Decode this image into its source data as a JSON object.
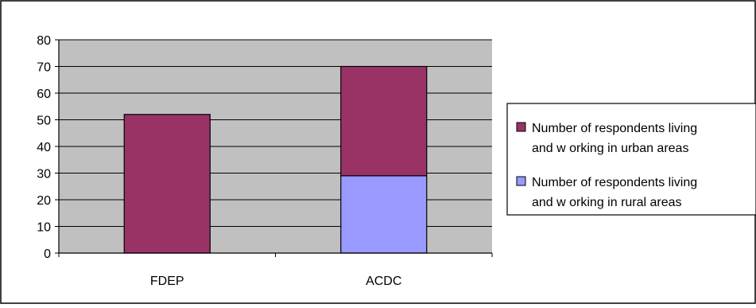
{
  "chart_data": {
    "type": "bar",
    "stacked": true,
    "categories": [
      "FDEP",
      "ACDC"
    ],
    "series": [
      {
        "name": "Number of respondents living and working in rural areas",
        "values": [
          0,
          29
        ],
        "color": "#9999ff"
      },
      {
        "name": "Number of respondents living and working in urban areas",
        "values": [
          52,
          41
        ],
        "color": "#993366"
      }
    ],
    "ylim": [
      0,
      80
    ],
    "yticks": [
      "0",
      "10",
      "20",
      "30",
      "40",
      "50",
      "60",
      "70",
      "80"
    ],
    "grid": true,
    "plot_background": "#c0c0c0",
    "legend": {
      "position": "right",
      "entries": [
        {
          "lines": [
            "Number of respondents living",
            "and w orking in urban areas"
          ],
          "color": "#993366"
        },
        {
          "lines": [
            "Number of respondents living",
            "and w orking in rural areas"
          ],
          "color": "#9999ff"
        }
      ]
    }
  }
}
